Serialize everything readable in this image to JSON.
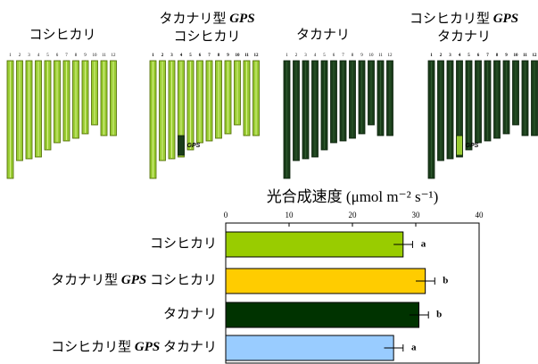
{
  "genome": {
    "chromosome_numbers": [
      "1",
      "2",
      "3",
      "4",
      "5",
      "6",
      "7",
      "8",
      "9",
      "10",
      "11",
      "12"
    ],
    "gene_label": "GPS",
    "panels": [
      {
        "title_lines": [
          "コシヒカリ"
        ]
      },
      {
        "title_lines": [
          "タカナリ型 GPS",
          "コシヒカリ"
        ]
      },
      {
        "title_lines": [
          "タカナリ"
        ]
      },
      {
        "title_lines": [
          "コシヒカリ型 GPS",
          "タカナリ"
        ]
      }
    ]
  },
  "chart_data": {
    "type": "bar",
    "orientation": "horizontal",
    "title": "光合成速度 (μmol m⁻² s⁻¹)",
    "categories": [
      "コシヒカリ",
      "タカナリ型 GPS コシヒカリ",
      "タカナリ",
      "コシヒカリ型 GPS タカナリ"
    ],
    "values": [
      28,
      31.5,
      30.5,
      26.5
    ],
    "errors": [
      1.5,
      1.5,
      1.5,
      1.5
    ],
    "annotations": [
      "a",
      "b",
      "b",
      "a"
    ],
    "colors": [
      "#99cc00",
      "#ffcc00",
      "#003300",
      "#99ccff"
    ],
    "xlim": [
      0,
      40
    ],
    "xticks": [
      0,
      10,
      20,
      30,
      40
    ]
  }
}
